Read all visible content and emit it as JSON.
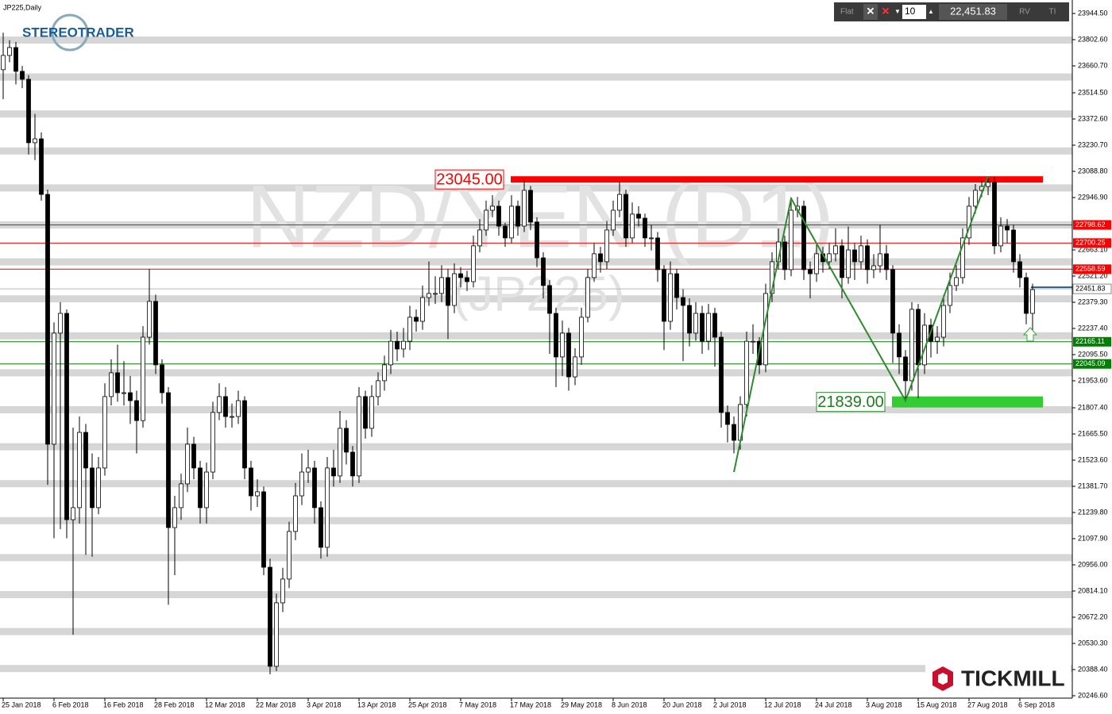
{
  "header": "JP225,Daily",
  "toolbar": {
    "mode": "Flat",
    "lots": "10",
    "price": "22,451.83",
    "button_1": "RV",
    "button_2": "TI"
  },
  "logos": {
    "top": "STEREOTRADER",
    "bottom": "TICKMILL"
  },
  "chart_data": {
    "type": "candlestick",
    "watermark": "NZD/YEN (D1)",
    "watermark_sub": "(JP225)",
    "categories": [
      "25 Jan 2018",
      null,
      null,
      null,
      null,
      null,
      null,
      null,
      "6 Feb 2018",
      null,
      null,
      null,
      null,
      null,
      null,
      null,
      "16 Feb 2018",
      null,
      null,
      null,
      null,
      null,
      null,
      null,
      "28 Feb 2018",
      null,
      null,
      null,
      null,
      null,
      null,
      null,
      "12 Mar 2018",
      null,
      null,
      null,
      null,
      null,
      null,
      null,
      "22 Mar 2018",
      null,
      null,
      null,
      null,
      null,
      null,
      null,
      "3 Apr 2018",
      null,
      null,
      null,
      null,
      null,
      null,
      null,
      "13 Apr 2018",
      null,
      null,
      null,
      null,
      null,
      null,
      null,
      "25 Apr 2018",
      null,
      null,
      null,
      null,
      null,
      null,
      null,
      "7 May 2018",
      null,
      null,
      null,
      null,
      null,
      null,
      null,
      "17 May 2018",
      null,
      null,
      null,
      null,
      null,
      null,
      null,
      "29 May 2018",
      null,
      null,
      null,
      null,
      null,
      null,
      null,
      "8 Jun 2018",
      null,
      null,
      null,
      null,
      null,
      null,
      null,
      "20 Jun 2018",
      null,
      null,
      null,
      null,
      null,
      null,
      null,
      "2 Jul 2018",
      null,
      null,
      null,
      null,
      null,
      null,
      null,
      "12 Jul 2018",
      null,
      null,
      null,
      null,
      null,
      null,
      null,
      "24 Jul 2018",
      null,
      null,
      null,
      null,
      null,
      null,
      null,
      "3 Aug 2018",
      null,
      null,
      null,
      null,
      null,
      null,
      null,
      "15 Aug 2018",
      null,
      null,
      null,
      null,
      null,
      null,
      null,
      "27 Aug 2018",
      null,
      null,
      null,
      null,
      null,
      null,
      null,
      "6 Sep 2018",
      null,
      null
    ],
    "open": [
      23640,
      23717,
      23760,
      23631,
      23588,
      23244,
      23265,
      22964,
      21610,
      22212,
      22319,
      21201,
      21266,
      21674,
      21481,
      21266,
      21481,
      21868,
      21997,
      21889,
      21889,
      21846,
      21738,
      22190,
      22384,
      22040,
      21889,
      21158,
      21266,
      21395,
      21610,
      21481,
      21266,
      21459,
      21782,
      21868,
      21760,
      21760,
      21846,
      21481,
      21330,
      21352,
      20943,
      20406,
      20750,
      20879,
      21137,
      21330,
      21459,
      21481,
      21266,
      21051,
      21481,
      21438,
      21696,
      21567,
      21438,
      21868,
      21696,
      21868,
      21954,
      22040,
      22168,
      22126,
      22168,
      22298,
      22276,
      22405,
      22427,
      22427,
      22513,
      22362,
      22534,
      22513,
      22491,
      22685,
      22771,
      22878,
      22900,
      22792,
      22728,
      22900,
      22792,
      22986,
      22814,
      22620,
      22470,
      22319,
      22083,
      22212,
      21975,
      22083,
      22298,
      22513,
      22642,
      22599,
      22771,
      22878,
      22964,
      22728,
      22857,
      22835,
      22728,
      22728,
      22556,
      22276,
      22534,
      22405,
      22362,
      22212,
      22319,
      22168,
      22319,
      22190,
      21782,
      21717,
      21631,
      21825,
      22168,
      22168,
      22040,
      22427,
      22599,
      22706,
      22556,
      22878,
      22900,
      22556,
      22534,
      22642,
      22599,
      22642,
      22685,
      22513,
      22663,
      22599,
      22685,
      22556,
      22577,
      22642,
      22556,
      22212,
      22083,
      21954,
      22341,
      22040,
      22255,
      22168,
      22190,
      22362,
      22470,
      22513,
      22728,
      22900,
      22986,
      23007,
      23029,
      22685,
      22792,
      22771,
      22599,
      22513,
      22319
    ],
    "high": [
      23840,
      23800,
      23790,
      23660,
      23610,
      23400,
      23300,
      22990,
      22270,
      22380,
      22340,
      21700,
      21760,
      21720,
      21560,
      21540,
      21940,
      22070,
      22150,
      22060,
      21980,
      21900,
      22250,
      22560,
      22420,
      22070,
      21920,
      21330,
      21450,
      21700,
      21650,
      21520,
      21510,
      21840,
      21940,
      21920,
      21830,
      21900,
      21870,
      21520,
      21420,
      21380,
      20990,
      20800,
      20940,
      21190,
      21400,
      21560,
      21580,
      21520,
      21300,
      21540,
      21580,
      21790,
      21740,
      21600,
      21920,
      21900,
      21930,
      22000,
      22090,
      22230,
      22220,
      22240,
      22360,
      22340,
      22470,
      22600,
      22520,
      22580,
      22560,
      22590,
      22570,
      22550,
      22740,
      22830,
      22930,
      22960,
      22930,
      22810,
      22960,
      22930,
      23040,
      23010,
      22840,
      22650,
      22500,
      22350,
      22280,
      22240,
      22130,
      22350,
      22560,
      22700,
      22680,
      22820,
      22930,
      23030,
      22990,
      22920,
      22900,
      22860,
      22800,
      22760,
      22580,
      22600,
      22560,
      22450,
      22400,
      22380,
      22360,
      22370,
      22350,
      22220,
      21820,
      21760,
      21870,
      22220,
      22260,
      22190,
      22480,
      22650,
      22780,
      22740,
      22930,
      22950,
      22930,
      22600,
      22700,
      22680,
      22700,
      22780,
      22720,
      22790,
      22700,
      22740,
      22720,
      22640,
      22800,
      22690,
      22580,
      22260,
      22120,
      22380,
      22370,
      22320,
      22290,
      22250,
      22420,
      22540,
      22580,
      22780,
      22950,
      23020,
      23040,
      23063,
      23060,
      22840,
      22830,
      22800,
      22640,
      22540,
      22480
    ],
    "low": [
      23480,
      23680,
      23560,
      23540,
      23180,
      23150,
      22930,
      21390,
      21100,
      21150,
      21100,
      20577,
      21180,
      21010,
      21000,
      21230,
      21440,
      21820,
      21840,
      21820,
      21720,
      21560,
      21700,
      22150,
      21990,
      21830,
      20740,
      20900,
      21200,
      21350,
      21420,
      21180,
      21180,
      21420,
      21740,
      21700,
      21700,
      21720,
      21420,
      21250,
      21270,
      20900,
      20363,
      20380,
      20700,
      20830,
      21090,
      21280,
      21400,
      21180,
      20990,
      21000,
      21380,
      21400,
      21500,
      21380,
      21400,
      21640,
      21650,
      21820,
      21900,
      21990,
      22060,
      22080,
      22120,
      22220,
      22230,
      22360,
      22370,
      22380,
      22180,
      22320,
      22460,
      22440,
      22460,
      22650,
      22740,
      22840,
      22740,
      22680,
      22700,
      22740,
      22760,
      22770,
      22570,
      22400,
      22100,
      21920,
      21980,
      21900,
      21930,
      22040,
      22270,
      22490,
      22540,
      22560,
      22740,
      22840,
      22680,
      22700,
      22790,
      22680,
      22660,
      22490,
      22120,
      22230,
      22340,
      22060,
      22140,
      22170,
      22100,
      22120,
      22030,
      21700,
      21620,
      21560,
      21580,
      21760,
      22100,
      21990,
      22000,
      22380,
      22560,
      22500,
      22520,
      22840,
      22500,
      22400,
      22490,
      22540,
      22560,
      22600,
      22400,
      22480,
      22500,
      22560,
      22480,
      22510,
      22540,
      22500,
      22050,
      21990,
      21839,
      21900,
      21860,
      21990,
      22080,
      22100,
      22140,
      22320,
      22440,
      22480,
      22690,
      22860,
      22950,
      22960,
      22640,
      22650,
      22700,
      22540,
      22460,
      22260,
      22200
    ],
    "close": [
      23717,
      23760,
      23631,
      23588,
      23244,
      23265,
      22964,
      21610,
      22212,
      22319,
      21201,
      21266,
      21674,
      21481,
      21266,
      21481,
      21868,
      21997,
      21889,
      21889,
      21846,
      21738,
      22190,
      22384,
      22040,
      21889,
      21158,
      21266,
      21395,
      21610,
      21481,
      21266,
      21459,
      21782,
      21868,
      21760,
      21760,
      21846,
      21481,
      21330,
      21352,
      20943,
      20406,
      20750,
      20879,
      21137,
      21330,
      21459,
      21481,
      21266,
      21051,
      21481,
      21438,
      21696,
      21567,
      21438,
      21868,
      21696,
      21868,
      21954,
      22040,
      22168,
      22126,
      22168,
      22298,
      22276,
      22405,
      22427,
      22427,
      22513,
      22362,
      22534,
      22513,
      22491,
      22685,
      22771,
      22878,
      22900,
      22792,
      22728,
      22900,
      22792,
      22986,
      22814,
      22620,
      22470,
      22319,
      22083,
      22212,
      21975,
      22083,
      22298,
      22513,
      22642,
      22599,
      22771,
      22878,
      22964,
      22728,
      22857,
      22835,
      22728,
      22728,
      22556,
      22276,
      22534,
      22405,
      22362,
      22212,
      22319,
      22168,
      22319,
      22190,
      21782,
      21717,
      21631,
      21825,
      22168,
      22168,
      22040,
      22427,
      22599,
      22706,
      22556,
      22878,
      22900,
      22556,
      22534,
      22642,
      22599,
      22642,
      22685,
      22513,
      22663,
      22599,
      22685,
      22556,
      22577,
      22642,
      22556,
      22212,
      22083,
      21954,
      22341,
      22040,
      22255,
      22168,
      22190,
      22362,
      22470,
      22513,
      22728,
      22900,
      22986,
      23007,
      23029,
      22685,
      22792,
      22771,
      22599,
      22513,
      22319,
      22448
    ],
    "ylim": [
      20233.6,
      24017.6
    ],
    "yticks": [
      {
        "value": 23944.5,
        "label": "23944.50"
      },
      {
        "value": 23802.6,
        "label": "23802.60"
      },
      {
        "value": 23660.7,
        "label": "23660.70"
      },
      {
        "value": 23514.5,
        "label": "23514.50"
      },
      {
        "value": 23372.6,
        "label": "23372.60"
      },
      {
        "value": 23230.7,
        "label": "23230.70"
      },
      {
        "value": 23088.8,
        "label": "23088.80"
      },
      {
        "value": 22946.9,
        "label": "22946.90"
      },
      {
        "value": 22663.1,
        "label": "22663.10"
      },
      {
        "value": 22521.2,
        "label": "22521.20"
      },
      {
        "value": 22379.3,
        "label": "22379.30"
      },
      {
        "value": 22237.4,
        "label": "22237.40"
      },
      {
        "value": 22095.5,
        "label": "22095.50"
      },
      {
        "value": 21953.6,
        "label": "21953.60"
      },
      {
        "value": 21807.4,
        "label": "21807.40"
      },
      {
        "value": 21665.5,
        "label": "21665.50"
      },
      {
        "value": 21523.6,
        "label": "21523.60"
      },
      {
        "value": 21381.7,
        "label": "21381.70"
      },
      {
        "value": 21239.8,
        "label": "21239.80"
      },
      {
        "value": 21097.9,
        "label": "21097.90"
      },
      {
        "value": 20956,
        "label": "20956.00"
      },
      {
        "value": 20814.1,
        "label": "20814.10"
      },
      {
        "value": 20672.2,
        "label": "20672.20"
      },
      {
        "value": 20530.3,
        "label": "20530.30"
      },
      {
        "value": 20388.4,
        "label": "20388.40"
      },
      {
        "value": 20246.6,
        "label": "20246.60"
      }
    ],
    "levels": [
      {
        "value": 22798.62,
        "color": "#ff0000"
      },
      {
        "value": 22700.25,
        "color": "#ff0000"
      },
      {
        "value": 22558.59,
        "color": "#ff0000"
      },
      {
        "value": 22165.11,
        "color": "#008000"
      },
      {
        "value": 22045.09,
        "color": "#008000"
      }
    ],
    "last_price": 22451.83,
    "resistance": {
      "value": 23045,
      "label": "23045.00",
      "color": "#ff0000"
    },
    "support": {
      "value": 21839,
      "label": "21839.00",
      "color": "#33cc33"
    },
    "zigzag": {
      "color": "#2e8b2e",
      "x": [
        115,
        124,
        142,
        155
      ],
      "y": [
        21459,
        22942,
        21846,
        23063
      ]
    }
  }
}
